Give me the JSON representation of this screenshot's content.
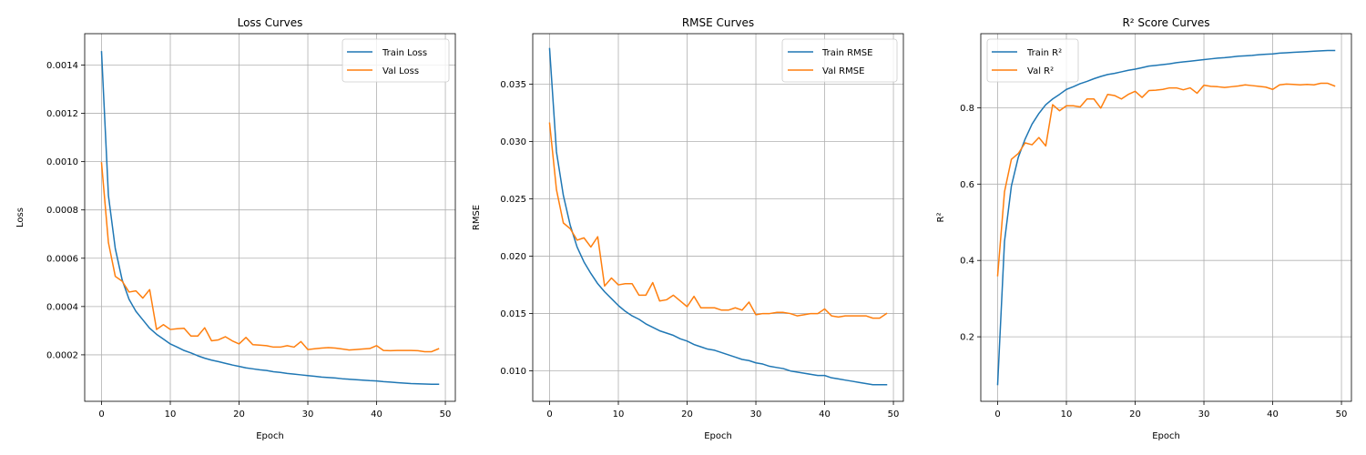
{
  "chart_data": [
    {
      "type": "line",
      "title": "Loss Curves",
      "xlabel": "Epoch",
      "ylabel": "Loss",
      "xlim": [
        -2.45,
        51.45
      ],
      "ylim": [
        7.5e-06,
        0.00153
      ],
      "xticks": [
        0,
        10,
        20,
        30,
        40,
        50
      ],
      "yticks": [
        0.0002,
        0.0004,
        0.0006,
        0.0008,
        0.001,
        0.0012,
        0.0014
      ],
      "ytick_labels": [
        "0.0002",
        "0.0004",
        "0.0006",
        "0.0008",
        "0.0010",
        "0.0012",
        "0.0014"
      ],
      "grid": true,
      "legend_position": "upper right",
      "x": [
        0,
        1,
        2,
        3,
        4,
        5,
        6,
        7,
        8,
        9,
        10,
        11,
        12,
        13,
        14,
        15,
        16,
        17,
        18,
        19,
        20,
        21,
        22,
        23,
        24,
        25,
        26,
        27,
        28,
        29,
        30,
        31,
        32,
        33,
        34,
        35,
        36,
        37,
        38,
        39,
        40,
        41,
        42,
        43,
        44,
        45,
        46,
        47,
        48,
        49
      ],
      "series": [
        {
          "name": "Train Loss",
          "color": "#1f77b4",
          "values": [
            0.001455,
            0.00086,
            0.00064,
            0.00051,
            0.00043,
            0.00038,
            0.000345,
            0.00031,
            0.000285,
            0.000265,
            0.000245,
            0.000232,
            0.000218,
            0.000208,
            0.000196,
            0.000186,
            0.000178,
            0.000172,
            0.000165,
            0.000158,
            0.000152,
            0.000146,
            0.000142,
            0.000138,
            0.000135,
            0.00013,
            0.000127,
            0.000123,
            0.00012,
            0.000117,
            0.000114,
            0.000111,
            0.000108,
            0.000106,
            0.000104,
            0.000101,
            9.9e-05,
            9.7e-05,
            9.5e-05,
            9.3e-05,
            9.2e-05,
            8.9e-05,
            8.7e-05,
            8.5e-05,
            8.3e-05,
            8.1e-05,
            8e-05,
            7.9e-05,
            7.8e-05,
            7.8e-05
          ]
        },
        {
          "name": "Val Loss",
          "color": "#ff7f0e",
          "values": [
            0.000995,
            0.000665,
            0.000525,
            0.000505,
            0.00046,
            0.000465,
            0.000435,
            0.00047,
            0.000305,
            0.000325,
            0.000305,
            0.000308,
            0.00031,
            0.000278,
            0.000278,
            0.000312,
            0.000258,
            0.000262,
            0.000275,
            0.000258,
            0.000245,
            0.000272,
            0.000242,
            0.00024,
            0.000238,
            0.000232,
            0.000232,
            0.000238,
            0.000232,
            0.000255,
            0.000222,
            0.000225,
            0.000228,
            0.00023,
            0.000228,
            0.000224,
            0.00022,
            0.000222,
            0.000224,
            0.000226,
            0.000238,
            0.000218,
            0.000217,
            0.000218,
            0.000218,
            0.000218,
            0.000217,
            0.000213,
            0.000213,
            0.000225
          ]
        }
      ]
    },
    {
      "type": "line",
      "title": "RMSE Curves",
      "xlabel": "Epoch",
      "ylabel": "RMSE",
      "xlim": [
        -2.45,
        51.45
      ],
      "ylim": [
        0.00735,
        0.0394
      ],
      "xticks": [
        0,
        10,
        20,
        30,
        40,
        50
      ],
      "yticks": [
        0.01,
        0.015,
        0.02,
        0.025,
        0.03,
        0.035
      ],
      "ytick_labels": [
        "0.010",
        "0.015",
        "0.020",
        "0.025",
        "0.030",
        "0.035"
      ],
      "grid": true,
      "legend_position": "upper right",
      "x": [
        0,
        1,
        2,
        3,
        4,
        5,
        6,
        7,
        8,
        9,
        10,
        11,
        12,
        13,
        14,
        15,
        16,
        17,
        18,
        19,
        20,
        21,
        22,
        23,
        24,
        25,
        26,
        27,
        28,
        29,
        30,
        31,
        32,
        33,
        34,
        35,
        36,
        37,
        38,
        39,
        40,
        41,
        42,
        43,
        44,
        45,
        46,
        47,
        48,
        49
      ],
      "series": [
        {
          "name": "Train RMSE",
          "color": "#1f77b4",
          "values": [
            0.0381,
            0.0291,
            0.0253,
            0.0227,
            0.0208,
            0.0195,
            0.0185,
            0.0176,
            0.0169,
            0.0163,
            0.0157,
            0.0152,
            0.0148,
            0.0145,
            0.0141,
            0.0138,
            0.0135,
            0.0133,
            0.0131,
            0.0128,
            0.0126,
            0.0123,
            0.0121,
            0.0119,
            0.0118,
            0.0116,
            0.0114,
            0.0112,
            0.011,
            0.0109,
            0.0107,
            0.0106,
            0.0104,
            0.0103,
            0.0102,
            0.01,
            0.0099,
            0.0098,
            0.0097,
            0.0096,
            0.0096,
            0.0094,
            0.0093,
            0.0092,
            0.0091,
            0.009,
            0.0089,
            0.0088,
            0.0088,
            0.0088
          ]
        },
        {
          "name": "Val RMSE",
          "color": "#ff7f0e",
          "values": [
            0.0316,
            0.0258,
            0.0229,
            0.0224,
            0.0214,
            0.0216,
            0.0208,
            0.0217,
            0.0174,
            0.0181,
            0.0175,
            0.0176,
            0.0176,
            0.0166,
            0.0166,
            0.0177,
            0.0161,
            0.0162,
            0.0166,
            0.0161,
            0.0156,
            0.0165,
            0.0155,
            0.0155,
            0.0155,
            0.0153,
            0.0153,
            0.0155,
            0.0153,
            0.016,
            0.0149,
            0.015,
            0.015,
            0.0151,
            0.0151,
            0.015,
            0.0148,
            0.0149,
            0.015,
            0.015,
            0.0154,
            0.0148,
            0.0147,
            0.0148,
            0.0148,
            0.0148,
            0.0148,
            0.0146,
            0.0146,
            0.015
          ]
        }
      ]
    },
    {
      "type": "line",
      "title": "R² Score Curves",
      "xlabel": "Epoch",
      "ylabel": "R²",
      "xlim": [
        -2.45,
        51.45
      ],
      "ylim": [
        0.031,
        0.994
      ],
      "xticks": [
        0,
        10,
        20,
        30,
        40,
        50
      ],
      "yticks": [
        0.2,
        0.4,
        0.6,
        0.8
      ],
      "ytick_labels": [
        "0.2",
        "0.4",
        "0.6",
        "0.8"
      ],
      "grid": true,
      "legend_position": "upper left",
      "x": [
        0,
        1,
        2,
        3,
        4,
        5,
        6,
        7,
        8,
        9,
        10,
        11,
        12,
        13,
        14,
        15,
        16,
        17,
        18,
        19,
        20,
        21,
        22,
        23,
        24,
        25,
        26,
        27,
        28,
        29,
        30,
        31,
        32,
        33,
        34,
        35,
        36,
        37,
        38,
        39,
        40,
        41,
        42,
        43,
        44,
        45,
        46,
        47,
        48,
        49
      ],
      "series": [
        {
          "name": "Train R²",
          "color": "#1f77b4",
          "values": [
            0.075,
            0.45,
            0.595,
            0.67,
            0.718,
            0.757,
            0.785,
            0.808,
            0.823,
            0.835,
            0.848,
            0.855,
            0.863,
            0.869,
            0.876,
            0.882,
            0.887,
            0.89,
            0.894,
            0.898,
            0.901,
            0.905,
            0.909,
            0.911,
            0.913,
            0.915,
            0.918,
            0.92,
            0.922,
            0.924,
            0.926,
            0.928,
            0.93,
            0.931,
            0.933,
            0.935,
            0.936,
            0.937,
            0.939,
            0.94,
            0.941,
            0.943,
            0.944,
            0.945,
            0.946,
            0.947,
            0.948,
            0.949,
            0.95,
            0.95
          ]
        },
        {
          "name": "Val R²",
          "color": "#ff7f0e",
          "values": [
            0.36,
            0.58,
            0.665,
            0.68,
            0.708,
            0.703,
            0.722,
            0.7,
            0.808,
            0.792,
            0.805,
            0.805,
            0.802,
            0.823,
            0.823,
            0.799,
            0.835,
            0.832,
            0.823,
            0.835,
            0.843,
            0.827,
            0.845,
            0.846,
            0.848,
            0.852,
            0.852,
            0.847,
            0.852,
            0.838,
            0.859,
            0.856,
            0.855,
            0.853,
            0.855,
            0.857,
            0.86,
            0.858,
            0.856,
            0.854,
            0.848,
            0.86,
            0.862,
            0.861,
            0.86,
            0.861,
            0.86,
            0.864,
            0.864,
            0.857
          ]
        }
      ]
    }
  ]
}
